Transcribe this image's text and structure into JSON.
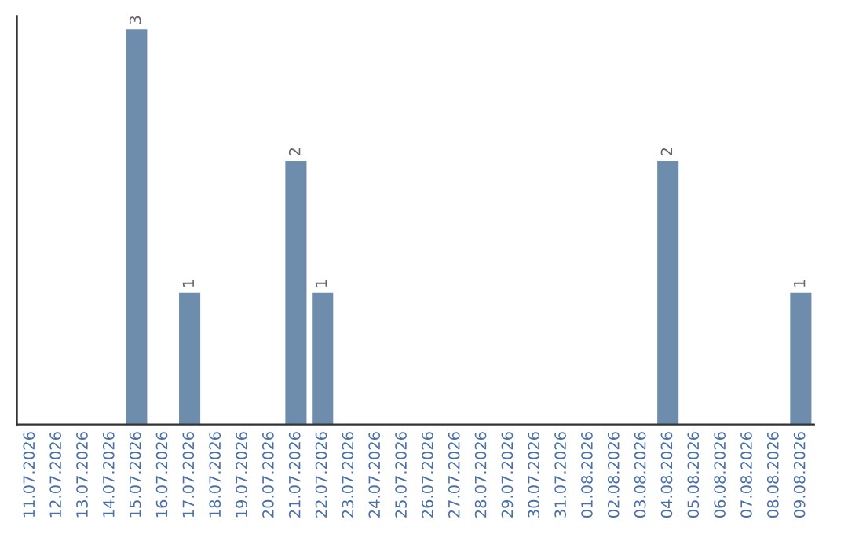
{
  "chart_data": {
    "type": "bar",
    "categories": [
      "11.07.2026",
      "12.07.2026",
      "13.07.2026",
      "14.07.2026",
      "15.07.2026",
      "16.07.2026",
      "17.07.2026",
      "18.07.2026",
      "19.07.2026",
      "20.07.2026",
      "21.07.2026",
      "22.07.2026",
      "23.07.2026",
      "24.07.2026",
      "25.07.2026",
      "26.07.2026",
      "27.07.2026",
      "28.07.2026",
      "29.07.2026",
      "30.07.2026",
      "31.07.2026",
      "01.08.2026",
      "02.08.2026",
      "03.08.2026",
      "04.08.2026",
      "05.08.2026",
      "06.08.2026",
      "07.08.2026",
      "08.08.2026",
      "09.08.2026"
    ],
    "values": [
      0,
      0,
      0,
      0,
      3,
      0,
      1,
      0,
      0,
      0,
      2,
      1,
      0,
      0,
      0,
      0,
      0,
      0,
      0,
      0,
      0,
      0,
      0,
      0,
      2,
      0,
      0,
      0,
      0,
      1
    ],
    "value_labels": [
      null,
      null,
      null,
      null,
      "3",
      null,
      "1",
      null,
      null,
      null,
      "2",
      "1",
      null,
      null,
      null,
      null,
      null,
      null,
      null,
      null,
      null,
      null,
      null,
      null,
      "2",
      null,
      null,
      null,
      null,
      "1"
    ],
    "color": "#6e8cab",
    "ylim": [
      0,
      3.1
    ],
    "tick_labels": "x",
    "grid": false,
    "legend": false
  }
}
